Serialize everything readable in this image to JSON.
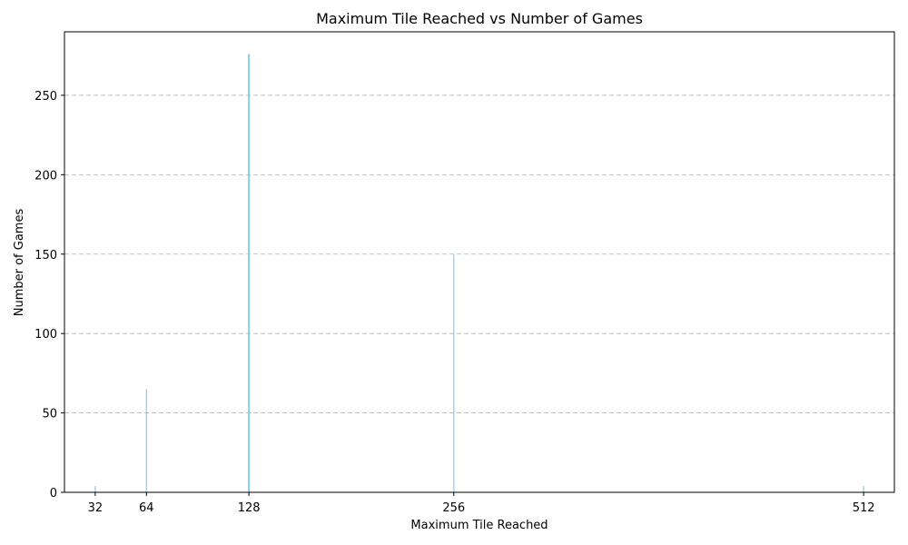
{
  "chart_data": {
    "type": "bar",
    "title": "Maximum Tile Reached vs Number of Games",
    "xlabel": "Maximum Tile Reached",
    "ylabel": "Number of Games",
    "x": [
      32,
      64,
      128,
      256,
      512
    ],
    "values": [
      4,
      65,
      276,
      150,
      4
    ],
    "xticks": [
      32,
      64,
      128,
      256,
      512
    ],
    "yticks": [
      0,
      50,
      100,
      150,
      200,
      250
    ],
    "xlim": [
      12.8,
      531.2
    ],
    "ylim": [
      0,
      290
    ],
    "grid": "y-dashed",
    "bar_color": "#87ceeb"
  }
}
